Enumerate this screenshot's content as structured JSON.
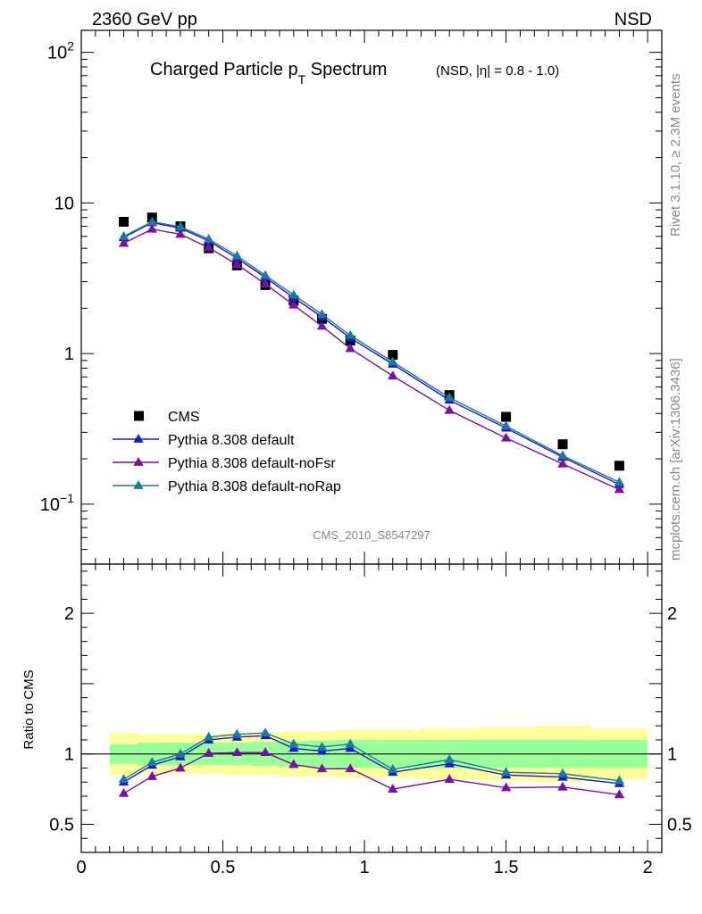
{
  "header": {
    "left": "2360 GeV pp",
    "right": "NSD"
  },
  "title": {
    "main": "Charged Particle p",
    "sub": "T",
    "main_after": " Spectrum",
    "extra": "(NSD, |η| = 0.8 - 1.0)"
  },
  "side_labels": {
    "rivet": "Rivet 3.1.10, ≥ 2.3M events",
    "mcplots": "mcplots.cern.ch [arXiv:1306.3436]"
  },
  "analysis_id": "CMS_2010_S8547297",
  "colors": {
    "cms": "#000000",
    "default": "#1a1acc",
    "noFsr": "#7a0fa8",
    "noRap": "#1a7a9a",
    "band_inner": "#99ff99",
    "band_outer": "#ffff99"
  },
  "chart_data": [
    {
      "type": "scatter",
      "scale": "log",
      "ylim": [
        0.04,
        140
      ],
      "xlim": [
        0,
        2.05
      ],
      "y_ticks": [
        {
          "value": 100,
          "label": "10",
          "exp": "2"
        },
        {
          "value": 10,
          "label": "10",
          "exp": ""
        },
        {
          "value": 1,
          "label": "1",
          "exp": ""
        },
        {
          "value": 0.1,
          "label": "10",
          "exp": "−1"
        }
      ],
      "legend": [
        "CMS",
        "Pythia 8.308 default",
        "Pythia 8.308 default-noFsr",
        "Pythia 8.308 default-noRap"
      ],
      "legend_position": "bottom-left",
      "x": [
        0.15,
        0.25,
        0.35,
        0.45,
        0.55,
        0.65,
        0.75,
        0.85,
        0.95,
        1.1,
        1.3,
        1.5,
        1.7,
        1.9
      ],
      "series": [
        {
          "name": "CMS",
          "key": "cms",
          "marker": "square",
          "values": [
            7.5,
            8.0,
            7.0,
            5.0,
            3.85,
            2.85,
            2.25,
            1.7,
            1.22,
            0.98,
            0.53,
            0.38,
            0.25,
            0.18
          ]
        },
        {
          "name": "Pythia 8.308 default",
          "key": "default",
          "marker": "triangle",
          "values": [
            5.9,
            7.4,
            6.8,
            5.6,
            4.3,
            3.2,
            2.35,
            1.75,
            1.27,
            0.85,
            0.49,
            0.32,
            0.205,
            0.135
          ]
        },
        {
          "name": "Pythia 8.308 default-noFsr",
          "key": "noFsr",
          "marker": "triangle",
          "values": [
            5.4,
            6.7,
            6.2,
            5.05,
            3.9,
            2.9,
            2.1,
            1.52,
            1.08,
            0.71,
            0.42,
            0.275,
            0.185,
            0.125
          ]
        },
        {
          "name": "Pythia 8.308 default-noRap",
          "key": "noRap",
          "marker": "triangle",
          "values": [
            6.0,
            7.5,
            6.95,
            5.75,
            4.45,
            3.3,
            2.45,
            1.82,
            1.32,
            0.88,
            0.51,
            0.33,
            0.21,
            0.14
          ]
        }
      ]
    },
    {
      "type": "line",
      "ylabel": "Ratio to CMS",
      "ylim": [
        0.3,
        2.35
      ],
      "xlim": [
        0,
        2.05
      ],
      "reference": 1,
      "y_ticks": [
        {
          "value": 0.5,
          "label": "0.5"
        },
        {
          "value": 1,
          "label": "1"
        },
        {
          "value": 2,
          "label": "2"
        }
      ],
      "x_ticks": [
        {
          "value": 0,
          "label": "0"
        },
        {
          "value": 0.5,
          "label": "0.5"
        },
        {
          "value": 1,
          "label": "1"
        },
        {
          "value": 1.5,
          "label": "1.5"
        },
        {
          "value": 2,
          "label": "2"
        }
      ],
      "bands": {
        "edges": [
          0.1,
          0.2,
          0.3,
          0.4,
          0.5,
          0.6,
          0.7,
          0.8,
          0.9,
          1.0,
          1.2,
          1.4,
          1.6,
          1.8,
          2.0
        ],
        "inner_lo": [
          0.93,
          0.92,
          0.92,
          0.92,
          0.92,
          0.915,
          0.91,
          0.905,
          0.9,
          0.9,
          0.9,
          0.9,
          0.9,
          0.9
        ],
        "inner_hi": [
          1.07,
          1.08,
          1.08,
          1.08,
          1.08,
          1.085,
          1.09,
          1.095,
          1.1,
          1.1,
          1.1,
          1.1,
          1.1,
          1.1
        ],
        "outer_lo": [
          0.85,
          0.86,
          0.86,
          0.86,
          0.85,
          0.85,
          0.84,
          0.84,
          0.83,
          0.83,
          0.82,
          0.81,
          0.8,
          0.82
        ],
        "outer_hi": [
          1.15,
          1.14,
          1.14,
          1.14,
          1.15,
          1.15,
          1.16,
          1.16,
          1.17,
          1.17,
          1.18,
          1.19,
          1.2,
          1.18
        ]
      },
      "x": [
        0.15,
        0.25,
        0.35,
        0.45,
        0.55,
        0.65,
        0.75,
        0.85,
        0.95,
        1.1,
        1.3,
        1.5,
        1.7,
        1.9
      ],
      "series": [
        {
          "name": "Pythia 8.308 default",
          "key": "default",
          "values": [
            0.8,
            0.92,
            0.98,
            1.1,
            1.12,
            1.13,
            1.04,
            1.02,
            1.04,
            0.87,
            0.93,
            0.85,
            0.835,
            0.79
          ]
        },
        {
          "name": "Pythia 8.308 default-noFsr",
          "key": "noFsr",
          "values": [
            0.72,
            0.84,
            0.9,
            1.005,
            1.01,
            1.01,
            0.925,
            0.895,
            0.895,
            0.75,
            0.82,
            0.76,
            0.765,
            0.71
          ]
        },
        {
          "name": "Pythia 8.308 default-noRap",
          "key": "noRap",
          "values": [
            0.82,
            0.94,
            1.0,
            1.12,
            1.14,
            1.15,
            1.07,
            1.05,
            1.07,
            0.89,
            0.96,
            0.87,
            0.86,
            0.81
          ]
        }
      ]
    }
  ]
}
